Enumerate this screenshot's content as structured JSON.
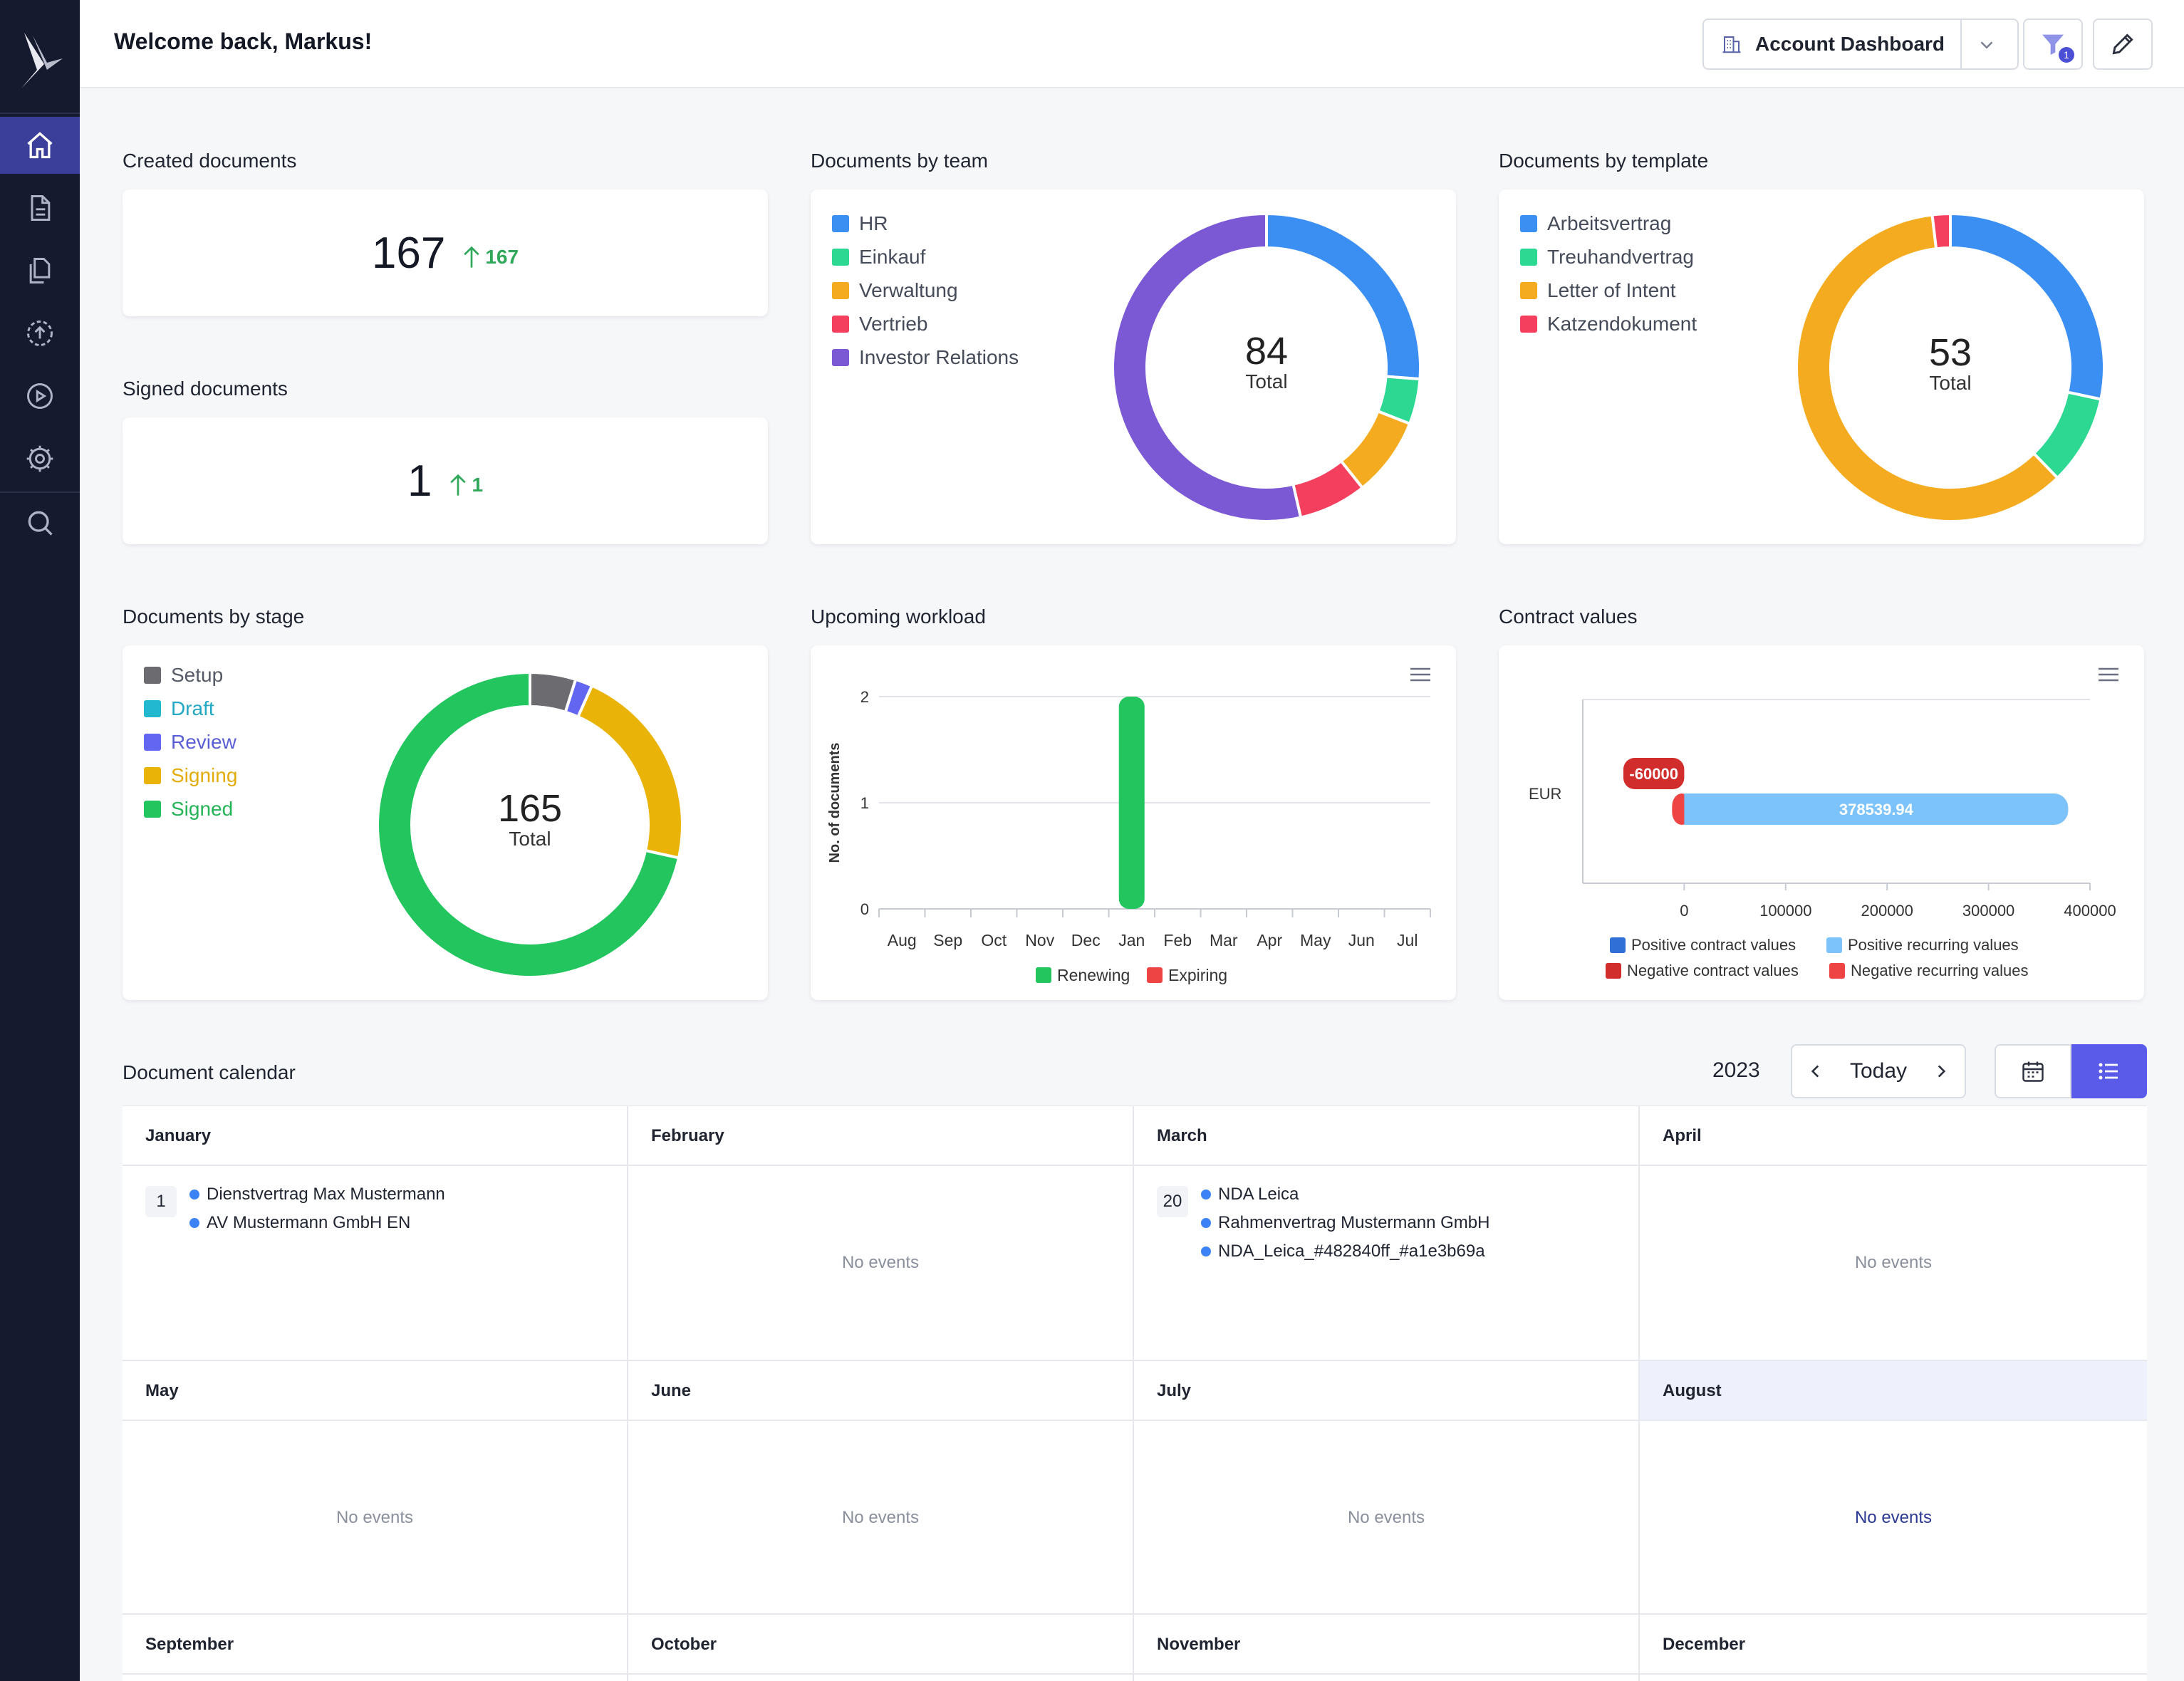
{
  "header": {
    "welcome": "Welcome back, Markus!",
    "dashboard_select": "Account Dashboard",
    "filter_badge": "1"
  },
  "nav": {
    "items": [
      "home-icon",
      "document-icon",
      "documents-icon",
      "upload-icon",
      "play-icon",
      "settings-icon",
      "search-icon"
    ],
    "active": "home-icon"
  },
  "created": {
    "title": "Created documents",
    "value": "167",
    "delta": "167"
  },
  "signed": {
    "title": "Signed documents",
    "value": "1",
    "delta": "1"
  },
  "by_team": {
    "title": "Documents by team",
    "total": "84",
    "total_label": "Total",
    "legend": [
      {
        "label": "HR",
        "color": "#3b8ff3"
      },
      {
        "label": "Einkauf",
        "color": "#2dd893"
      },
      {
        "label": "Verwaltung",
        "color": "#f5ab1f"
      },
      {
        "label": "Vertrieb",
        "color": "#f43f5e"
      },
      {
        "label": "Investor Relations",
        "color": "#7b58d4"
      }
    ]
  },
  "by_template": {
    "title": "Documents by template",
    "total": "53",
    "total_label": "Total",
    "legend": [
      {
        "label": "Arbeitsvertrag",
        "color": "#3b8ff3"
      },
      {
        "label": "Treuhandvertrag",
        "color": "#2dd893"
      },
      {
        "label": "Letter of Intent",
        "color": "#f5ab1f"
      },
      {
        "label": "Katzendokument",
        "color": "#f43f5e"
      }
    ]
  },
  "by_stage": {
    "title": "Documents by stage",
    "total": "165",
    "total_label": "Total",
    "legend": [
      {
        "label": "Setup",
        "color": "#6b6b70",
        "text_color": "#555a66"
      },
      {
        "label": "Draft",
        "color": "#22b8cf",
        "text_color": "#22a7c4"
      },
      {
        "label": "Review",
        "color": "#6366f1",
        "text_color": "#5b5fd6"
      },
      {
        "label": "Signing",
        "color": "#eab308",
        "text_color": "#e3ac0a"
      },
      {
        "label": "Signed",
        "color": "#22c55e",
        "text_color": "#24b457"
      }
    ]
  },
  "workload": {
    "title": "Upcoming workload",
    "ylabel": "No. of documents",
    "yticks": [
      "0",
      "1",
      "2"
    ],
    "legend": [
      {
        "label": "Renewing",
        "color": "#22c55e"
      },
      {
        "label": "Expiring",
        "color": "#ef4444"
      }
    ]
  },
  "contract": {
    "title": "Contract values",
    "category": "EUR",
    "xticks": [
      "0",
      "100000",
      "200000",
      "300000",
      "400000"
    ],
    "neg_label": "-60000",
    "pos_label": "378539.94",
    "legend": [
      {
        "label": "Positive contract values",
        "color": "#2f6fd6"
      },
      {
        "label": "Positive recurring values",
        "color": "#7cc3fb"
      },
      {
        "label": "Negative contract values",
        "color": "#d22d2d"
      },
      {
        "label": "Negative recurring values",
        "color": "#ef4444"
      }
    ]
  },
  "calendar": {
    "title": "Document calendar",
    "year": "2023",
    "today": "Today",
    "no_events": "No events",
    "months": [
      "January",
      "February",
      "March",
      "April",
      "May",
      "June",
      "July",
      "August",
      "September",
      "October",
      "November",
      "December"
    ],
    "jan_day": "1",
    "jan_events": [
      "Dienstvertrag Max Mustermann",
      "AV Mustermann GmbH EN"
    ],
    "mar_day": "20",
    "mar_events": [
      "NDA Leica",
      "Rahmenvertrag Mustermann GmbH",
      "NDA_Leica_#482840ff_#a1e3b69a"
    ]
  },
  "chart_data": [
    {
      "type": "pie",
      "title": "Documents by team",
      "categories": [
        "HR",
        "Einkauf",
        "Verwaltung",
        "Vertrieb",
        "Investor Relations"
      ],
      "values": [
        22,
        4,
        7,
        6,
        45
      ]
    },
    {
      "type": "pie",
      "title": "Documents by template",
      "categories": [
        "Arbeitsvertrag",
        "Treuhandvertrag",
        "Letter of Intent",
        "Katzendokument"
      ],
      "values": [
        15,
        5,
        32,
        1
      ]
    },
    {
      "type": "pie",
      "title": "Documents by stage",
      "categories": [
        "Setup",
        "Draft",
        "Review",
        "Signing",
        "Signed"
      ],
      "values": [
        8,
        0,
        3,
        36,
        118
      ]
    },
    {
      "type": "bar",
      "title": "Upcoming workload",
      "categories": [
        "Aug",
        "Sep",
        "Oct",
        "Nov",
        "Dec",
        "Jan",
        "Feb",
        "Mar",
        "Apr",
        "May",
        "Jun",
        "Jul"
      ],
      "series": [
        {
          "name": "Renewing",
          "values": [
            0,
            0,
            0,
            0,
            0,
            2,
            0,
            0,
            0,
            0,
            0,
            0
          ]
        },
        {
          "name": "Expiring",
          "values": [
            0,
            0,
            0,
            0,
            0,
            0,
            0,
            0,
            0,
            0,
            0,
            0
          ]
        }
      ],
      "ylabel": "No. of documents",
      "ylim": [
        0,
        2
      ]
    },
    {
      "type": "bar",
      "title": "Contract values",
      "categories": [
        "EUR"
      ],
      "series": [
        {
          "name": "Negative contract values",
          "values": [
            -60000
          ]
        },
        {
          "name": "Positive recurring values",
          "values": [
            378539.94
          ]
        }
      ],
      "xlim": [
        -100000,
        400000
      ]
    }
  ]
}
